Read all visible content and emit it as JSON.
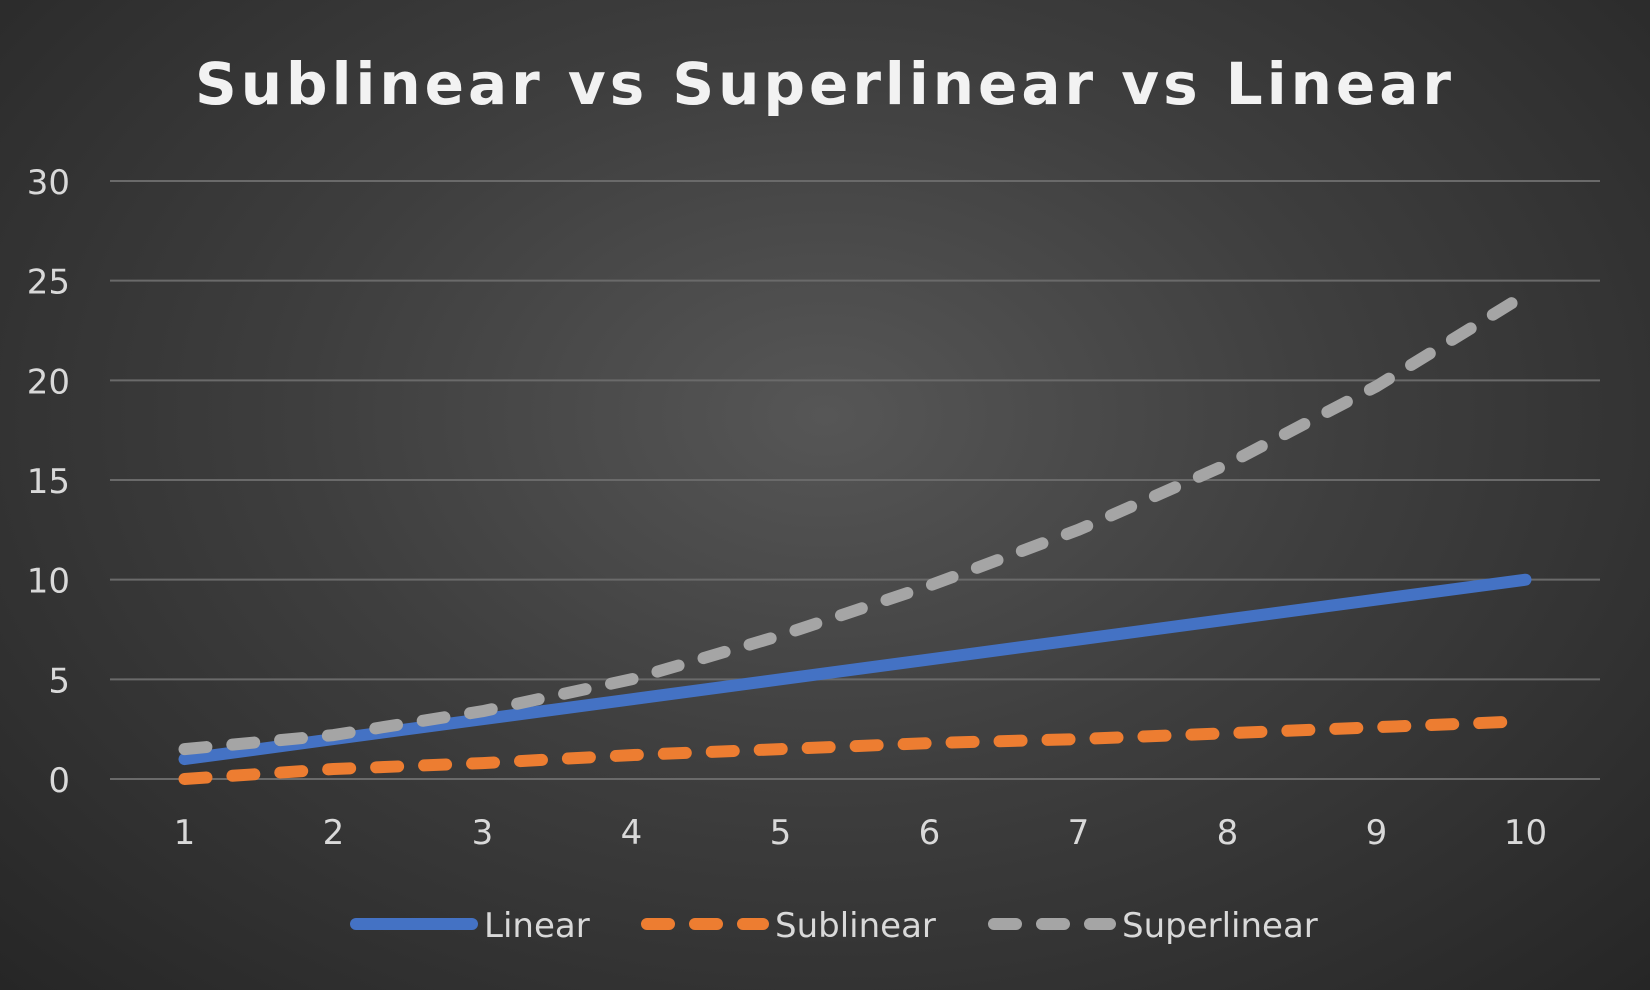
{
  "chart_data": {
    "type": "line",
    "title": "Sublinear vs Superlinear vs Linear",
    "xlabel": "",
    "ylabel": "",
    "x": [
      1,
      2,
      3,
      4,
      5,
      6,
      7,
      8,
      9,
      10
    ],
    "y_ticks": [
      "0",
      "5",
      "10",
      "15",
      "20",
      "25",
      "30"
    ],
    "x_ticks": [
      "1",
      "2",
      "3",
      "4",
      "5",
      "6",
      "7",
      "8",
      "9",
      "10"
    ],
    "ylim": [
      0,
      30
    ],
    "grid": true,
    "legend_position": "bottom",
    "series": [
      {
        "name": "Linear",
        "color": "#4472c4",
        "style": "solid",
        "values": [
          1,
          2,
          3,
          4,
          5,
          6,
          7,
          8,
          9,
          10
        ]
      },
      {
        "name": "Sublinear",
        "color": "#ed7d31",
        "style": "dashed",
        "values": [
          0,
          0.5,
          0.8,
          1.2,
          1.5,
          1.8,
          2.0,
          2.3,
          2.6,
          2.9
        ]
      },
      {
        "name": "Superlinear",
        "color": "#a5a5a5",
        "style": "dashed",
        "values": [
          1.5,
          2.2,
          3.4,
          5.0,
          7.2,
          9.7,
          12.5,
          15.8,
          19.7,
          24.3
        ]
      }
    ]
  }
}
